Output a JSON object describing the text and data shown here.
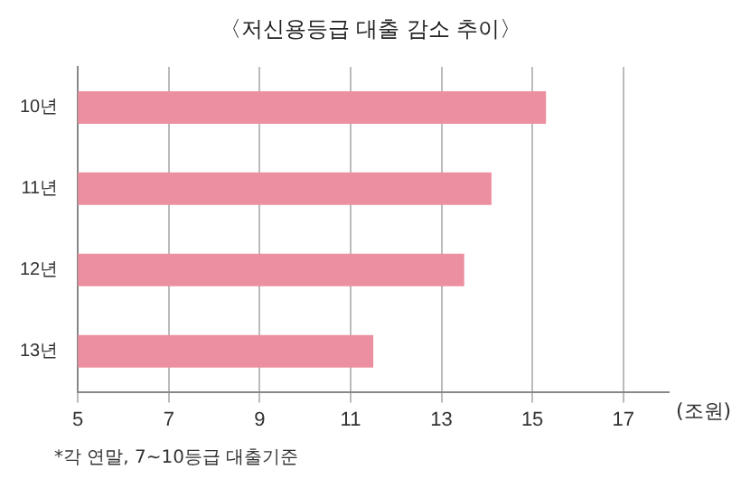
{
  "chart_data": {
    "type": "bar",
    "orientation": "horizontal",
    "title": "〈저신용등급 대출 감소 추이〉",
    "xlabel": "(조원)",
    "categories": [
      "10년",
      "11년",
      "12년",
      "13년"
    ],
    "values": [
      15.3,
      14.1,
      13.5,
      11.5
    ],
    "color": "#ec8fa0",
    "xlim": [
      5,
      18
    ],
    "xticks": [
      5,
      7,
      9,
      11,
      13,
      15,
      17
    ],
    "grid": "x",
    "annotations": [
      "*각 연말, 7~10등급 대출기준"
    ]
  }
}
